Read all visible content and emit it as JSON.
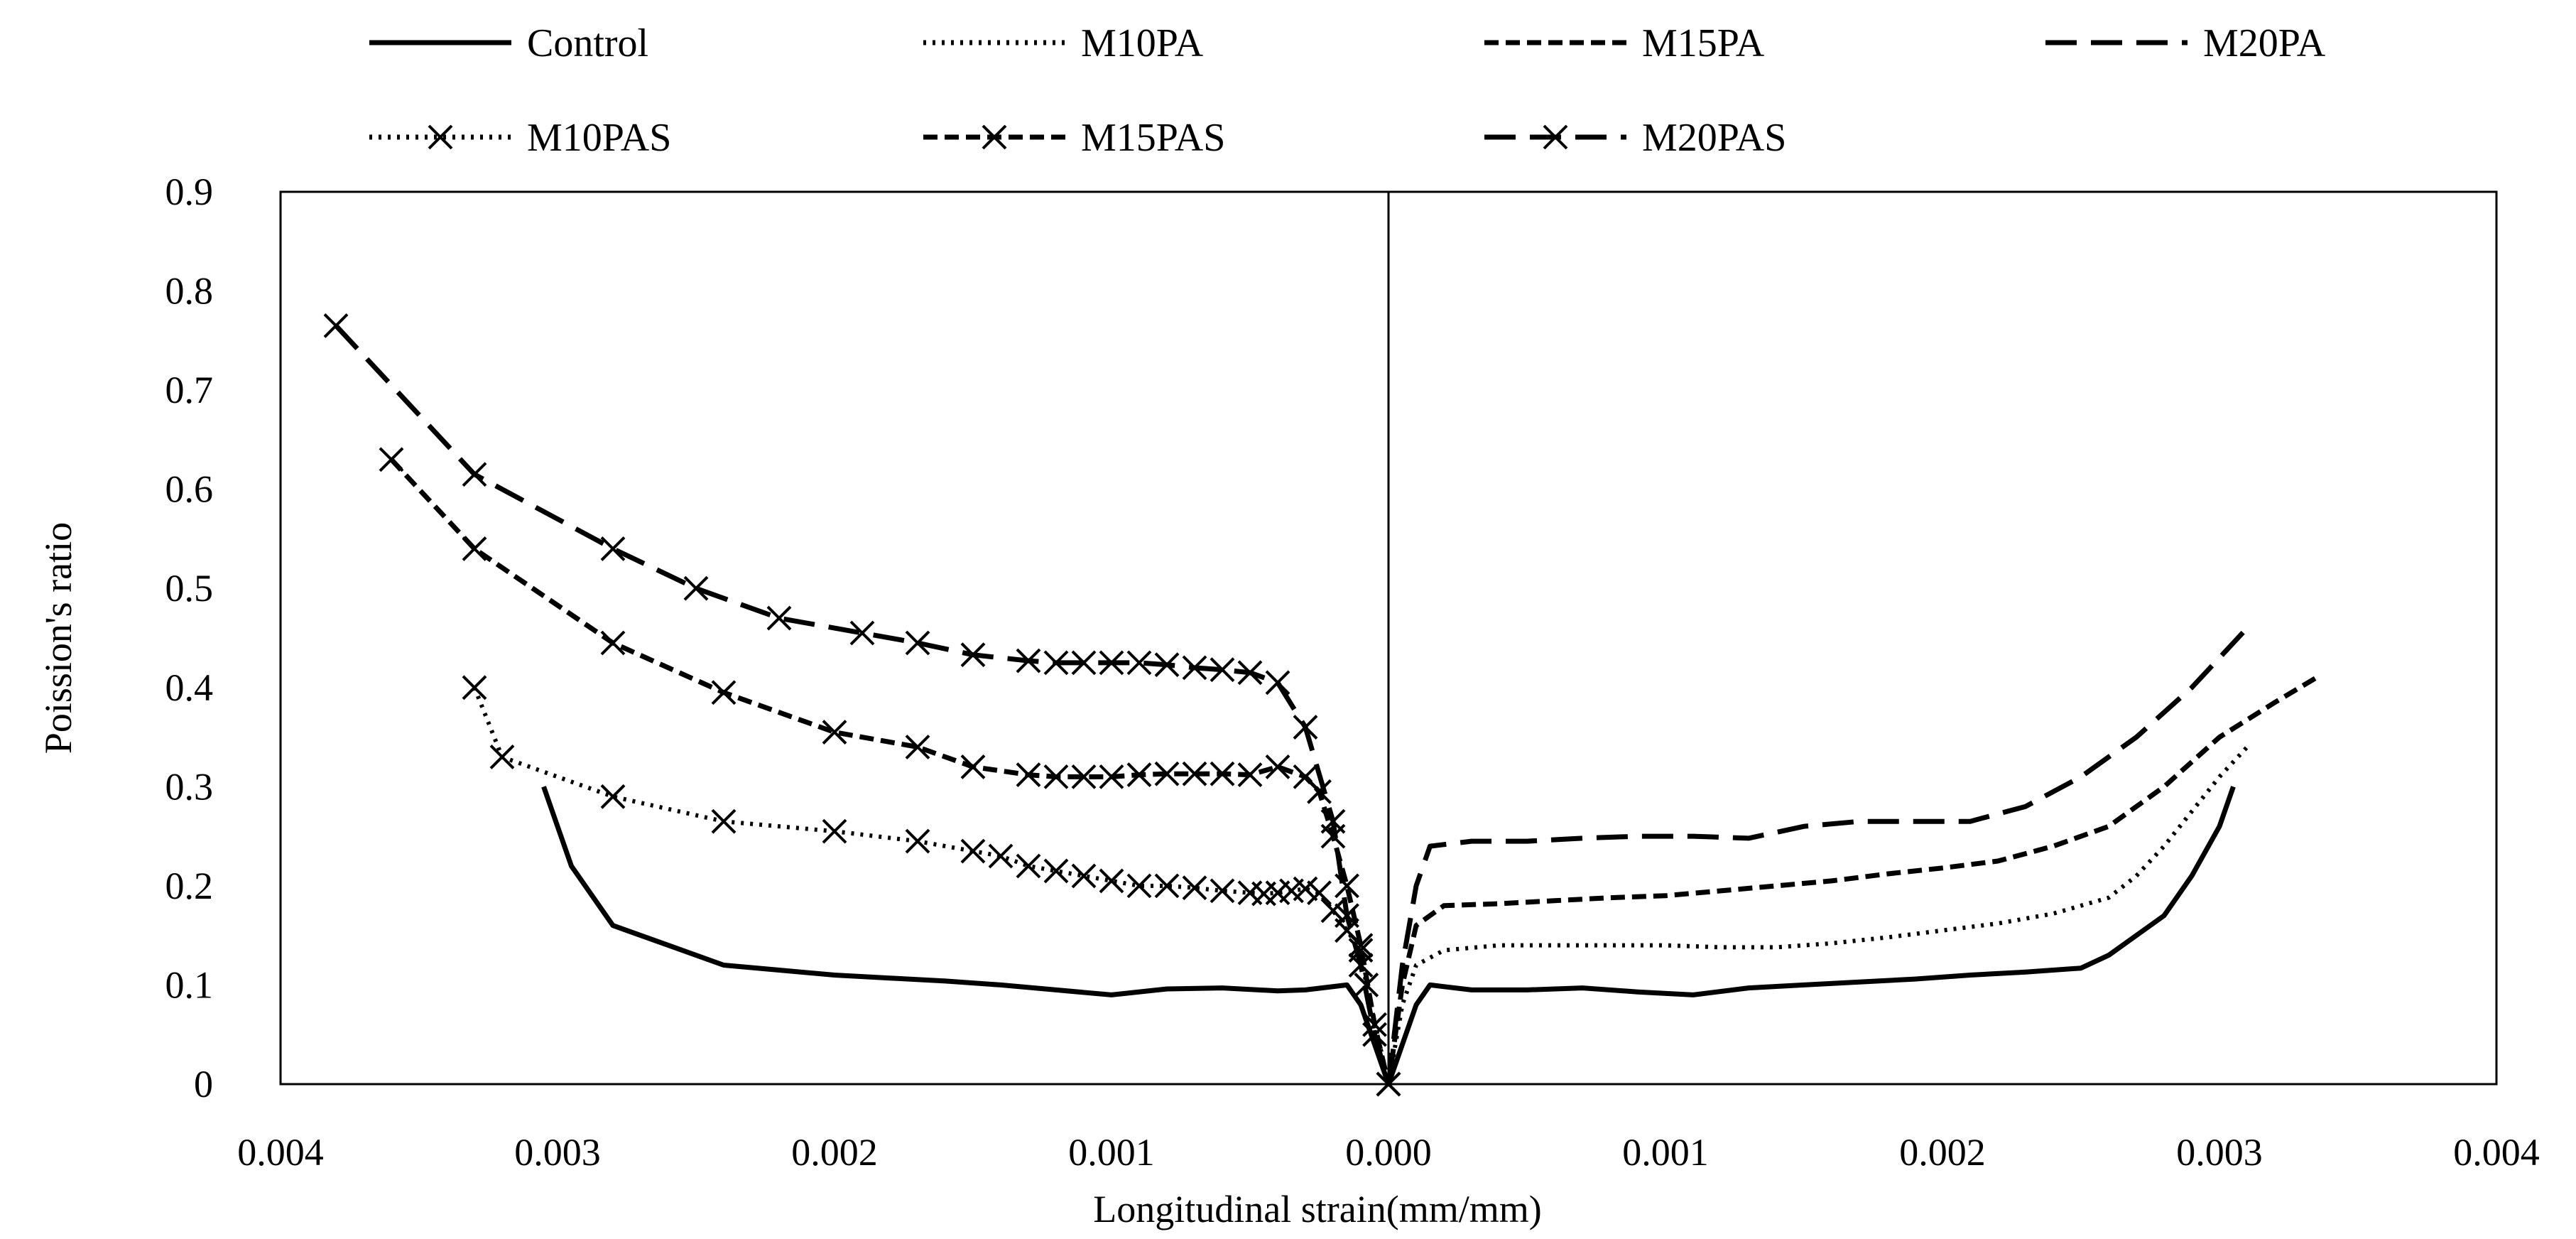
{
  "chart_data": {
    "type": "line",
    "title": "",
    "xlabel": "Longitudinal strain(mm/mm)",
    "ylabel": "Poission's ratio",
    "xlim": [
      -0.004,
      0.004
    ],
    "ylim": [
      0,
      0.9
    ],
    "x_tick_values": [
      -0.004,
      -0.003,
      -0.002,
      -0.001,
      0.0,
      0.001,
      0.002,
      0.003,
      0.004
    ],
    "x_tick_labels": [
      "0.004",
      "0.003",
      "0.002",
      "0.001",
      "0.000",
      "0.001",
      "0.002",
      "0.003",
      "0.004"
    ],
    "y_tick_values": [
      0,
      0.1,
      0.2,
      0.3,
      0.4,
      0.5,
      0.6,
      0.7,
      0.8,
      0.9
    ],
    "y_tick_labels": [
      "0",
      "0.1",
      "0.2",
      "0.3",
      "0.4",
      "0.5",
      "0.6",
      "0.7",
      "0.8",
      "0.9"
    ],
    "grid": false,
    "legend_position": "top",
    "series": [
      {
        "name": "Control",
        "dash": "solid",
        "marker": "none",
        "points": [
          [
            -0.00305,
            0.3
          ],
          [
            -0.00295,
            0.22
          ],
          [
            -0.0028,
            0.16
          ],
          [
            -0.0026,
            0.14
          ],
          [
            -0.0024,
            0.12
          ],
          [
            -0.0022,
            0.115
          ],
          [
            -0.002,
            0.11
          ],
          [
            -0.0018,
            0.107
          ],
          [
            -0.0016,
            0.104
          ],
          [
            -0.0014,
            0.1
          ],
          [
            -0.0012,
            0.095
          ],
          [
            -0.001,
            0.09
          ],
          [
            -0.0008,
            0.096
          ],
          [
            -0.0006,
            0.097
          ],
          [
            -0.0004,
            0.094
          ],
          [
            -0.0003,
            0.095
          ],
          [
            -0.00015,
            0.1
          ],
          [
            -0.0001,
            0.08
          ],
          [
            -5e-05,
            0.04
          ],
          [
            0,
            0.0
          ],
          [
            5e-05,
            0.04
          ],
          [
            0.0001,
            0.08
          ],
          [
            0.00015,
            0.1
          ],
          [
            0.0003,
            0.095
          ],
          [
            0.0005,
            0.095
          ],
          [
            0.0007,
            0.097
          ],
          [
            0.0009,
            0.093
          ],
          [
            0.0011,
            0.09
          ],
          [
            0.0013,
            0.097
          ],
          [
            0.0015,
            0.1
          ],
          [
            0.0017,
            0.103
          ],
          [
            0.0019,
            0.106
          ],
          [
            0.0021,
            0.11
          ],
          [
            0.0023,
            0.113
          ],
          [
            0.0025,
            0.117
          ],
          [
            0.0026,
            0.13
          ],
          [
            0.0027,
            0.15
          ],
          [
            0.0028,
            0.17
          ],
          [
            0.0029,
            0.21
          ],
          [
            0.003,
            0.26
          ],
          [
            0.00305,
            0.3
          ]
        ]
      },
      {
        "name": "M10PA",
        "dash": "dotted",
        "marker": "none",
        "points": [
          [
            0,
            0.0
          ],
          [
            5e-05,
            0.08
          ],
          [
            0.0001,
            0.12
          ],
          [
            0.0002,
            0.135
          ],
          [
            0.0004,
            0.14
          ],
          [
            0.0006,
            0.14
          ],
          [
            0.0008,
            0.14
          ],
          [
            0.001,
            0.14
          ],
          [
            0.0012,
            0.138
          ],
          [
            0.0014,
            0.138
          ],
          [
            0.0016,
            0.142
          ],
          [
            0.0018,
            0.148
          ],
          [
            0.002,
            0.155
          ],
          [
            0.0022,
            0.162
          ],
          [
            0.0024,
            0.172
          ],
          [
            0.0026,
            0.188
          ],
          [
            0.0027,
            0.21
          ],
          [
            0.0028,
            0.24
          ],
          [
            0.0029,
            0.275
          ],
          [
            0.003,
            0.31
          ],
          [
            0.0031,
            0.34
          ]
        ]
      },
      {
        "name": "M15PA",
        "dash": "short-dash",
        "marker": "none",
        "points": [
          [
            0,
            0.0
          ],
          [
            5e-05,
            0.1
          ],
          [
            0.0001,
            0.16
          ],
          [
            0.0002,
            0.18
          ],
          [
            0.0004,
            0.182
          ],
          [
            0.0006,
            0.185
          ],
          [
            0.0008,
            0.188
          ],
          [
            0.001,
            0.19
          ],
          [
            0.0012,
            0.195
          ],
          [
            0.0014,
            0.2
          ],
          [
            0.0016,
            0.205
          ],
          [
            0.0018,
            0.212
          ],
          [
            0.002,
            0.218
          ],
          [
            0.0022,
            0.225
          ],
          [
            0.0024,
            0.24
          ],
          [
            0.0026,
            0.26
          ],
          [
            0.0028,
            0.3
          ],
          [
            0.003,
            0.35
          ],
          [
            0.0032,
            0.385
          ],
          [
            0.00335,
            0.41
          ]
        ]
      },
      {
        "name": "M20PA",
        "dash": "long-dash",
        "marker": "none",
        "points": [
          [
            0,
            0.0
          ],
          [
            5e-05,
            0.12
          ],
          [
            0.0001,
            0.2
          ],
          [
            0.00015,
            0.24
          ],
          [
            0.0003,
            0.245
          ],
          [
            0.0005,
            0.245
          ],
          [
            0.0007,
            0.248
          ],
          [
            0.0009,
            0.25
          ],
          [
            0.0011,
            0.25
          ],
          [
            0.0013,
            0.248
          ],
          [
            0.0015,
            0.26
          ],
          [
            0.0017,
            0.265
          ],
          [
            0.0019,
            0.265
          ],
          [
            0.0021,
            0.265
          ],
          [
            0.0023,
            0.28
          ],
          [
            0.0025,
            0.31
          ],
          [
            0.0027,
            0.35
          ],
          [
            0.0029,
            0.4
          ],
          [
            0.0031,
            0.46
          ]
        ]
      },
      {
        "name": "M10PAS",
        "dash": "dotted",
        "marker": "x",
        "points": [
          [
            -0.0033,
            0.4
          ],
          [
            -0.0032,
            0.33
          ],
          [
            -0.0028,
            0.29
          ],
          [
            -0.0024,
            0.265
          ],
          [
            -0.002,
            0.255
          ],
          [
            -0.0017,
            0.245
          ],
          [
            -0.0015,
            0.235
          ],
          [
            -0.0014,
            0.23
          ],
          [
            -0.0013,
            0.22
          ],
          [
            -0.0012,
            0.215
          ],
          [
            -0.0011,
            0.21
          ],
          [
            -0.001,
            0.205
          ],
          [
            -0.0009,
            0.2
          ],
          [
            -0.0008,
            0.2
          ],
          [
            -0.0007,
            0.198
          ],
          [
            -0.0006,
            0.195
          ],
          [
            -0.0005,
            0.193
          ],
          [
            -0.00045,
            0.192
          ],
          [
            -0.0004,
            0.193
          ],
          [
            -0.00035,
            0.195
          ],
          [
            -0.0003,
            0.197
          ],
          [
            -0.00025,
            0.193
          ],
          [
            -0.0002,
            0.175
          ],
          [
            -0.00015,
            0.155
          ],
          [
            -0.0001,
            0.135
          ],
          [
            -8e-05,
            0.1
          ],
          [
            0,
            0.0
          ]
        ]
      },
      {
        "name": "M15PAS",
        "dash": "short-dash",
        "marker": "x",
        "points": [
          [
            -0.0036,
            0.63
          ],
          [
            -0.0033,
            0.54
          ],
          [
            -0.0028,
            0.445
          ],
          [
            -0.0024,
            0.395
          ],
          [
            -0.002,
            0.355
          ],
          [
            -0.0017,
            0.34
          ],
          [
            -0.0015,
            0.32
          ],
          [
            -0.0013,
            0.312
          ],
          [
            -0.0012,
            0.31
          ],
          [
            -0.0011,
            0.31
          ],
          [
            -0.001,
            0.31
          ],
          [
            -0.0009,
            0.312
          ],
          [
            -0.0008,
            0.313
          ],
          [
            -0.0007,
            0.313
          ],
          [
            -0.0006,
            0.313
          ],
          [
            -0.0005,
            0.312
          ],
          [
            -0.0004,
            0.32
          ],
          [
            -0.0003,
            0.31
          ],
          [
            -0.00025,
            0.295
          ],
          [
            -0.0002,
            0.25
          ],
          [
            -0.00015,
            0.2
          ],
          [
            -0.0001,
            0.14
          ],
          [
            -5e-05,
            0.06
          ],
          [
            0,
            0.0
          ]
        ]
      },
      {
        "name": "M20PAS",
        "dash": "long-dash",
        "marker": "x",
        "points": [
          [
            -0.0038,
            0.765
          ],
          [
            -0.0033,
            0.615
          ],
          [
            -0.0028,
            0.54
          ],
          [
            -0.0025,
            0.5
          ],
          [
            -0.0022,
            0.47
          ],
          [
            -0.0019,
            0.455
          ],
          [
            -0.0017,
            0.445
          ],
          [
            -0.0015,
            0.433
          ],
          [
            -0.0013,
            0.427
          ],
          [
            -0.0012,
            0.425
          ],
          [
            -0.0011,
            0.425
          ],
          [
            -0.001,
            0.425
          ],
          [
            -0.0009,
            0.425
          ],
          [
            -0.0008,
            0.423
          ],
          [
            -0.0007,
            0.42
          ],
          [
            -0.0006,
            0.418
          ],
          [
            -0.0005,
            0.415
          ],
          [
            -0.0004,
            0.405
          ],
          [
            -0.0003,
            0.36
          ],
          [
            -0.0002,
            0.265
          ],
          [
            -0.00015,
            0.17
          ],
          [
            -0.0001,
            0.12
          ],
          [
            -5e-05,
            0.05
          ],
          [
            0,
            0.0
          ]
        ]
      }
    ]
  }
}
